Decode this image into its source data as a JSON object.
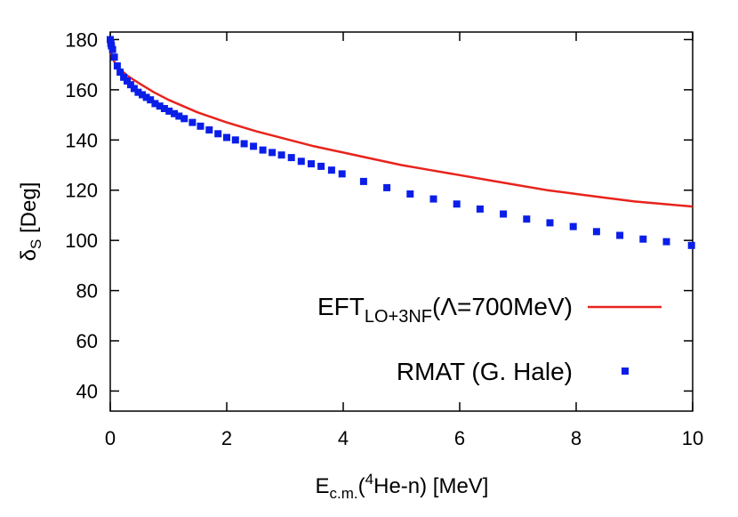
{
  "chart_data": {
    "type": "line",
    "xlabel": "E_c.m.(4He-n) [MeV]",
    "ylabel": "δ_S [Deg]",
    "xlim": [
      0,
      10
    ],
    "ylim": [
      32,
      183
    ],
    "x_ticks": [
      "0",
      "2",
      "4",
      "6",
      "8",
      "10"
    ],
    "y_ticks": [
      "40",
      "60",
      "80",
      "100",
      "120",
      "140",
      "160",
      "180"
    ],
    "grid": false,
    "legend_position": "bottom-right",
    "legend_entries": [
      "EFT_LO+3NF(Λ=700MeV)",
      "RMAT (G. Hale)"
    ],
    "series": [
      {
        "name": "EFT_LO+3NF(Λ=700MeV)",
        "style": "line",
        "color": "#e8231c",
        "x": [
          0.0,
          0.01,
          0.05,
          0.1,
          0.2,
          0.3,
          0.5,
          0.75,
          1.0,
          1.5,
          2.0,
          2.5,
          3.0,
          3.5,
          4.0,
          4.5,
          5.0,
          5.5,
          6.0,
          6.5,
          7.0,
          7.5,
          8.0,
          8.5,
          9.0,
          9.5,
          10.0
        ],
        "y": [
          180.0,
          175.0,
          172.0,
          170.0,
          167.5,
          165.5,
          162.5,
          159.0,
          156.0,
          151.0,
          147.0,
          143.5,
          140.5,
          137.5,
          135.0,
          132.5,
          130.0,
          128.0,
          126.0,
          124.0,
          122.0,
          120.0,
          118.5,
          117.0,
          115.5,
          114.5,
          113.5
        ]
      },
      {
        "name": "RMAT (G. Hale)",
        "style": "markers",
        "color": "#0a1ee8",
        "x": [
          0.0,
          0.01,
          0.02,
          0.04,
          0.07,
          0.12,
          0.17,
          0.23,
          0.29,
          0.35,
          0.41,
          0.48,
          0.55,
          0.62,
          0.69,
          0.77,
          0.85,
          0.93,
          1.01,
          1.1,
          1.18,
          1.27,
          1.41,
          1.55,
          1.7,
          1.85,
          2.0,
          2.15,
          2.3,
          2.46,
          2.62,
          2.78,
          2.94,
          3.11,
          3.28,
          3.45,
          3.62,
          3.8,
          3.98,
          4.35,
          4.75,
          5.15,
          5.55,
          5.95,
          6.35,
          6.75,
          7.15,
          7.55,
          7.95,
          8.35,
          8.75,
          9.15,
          9.55,
          9.98
        ],
        "y": [
          180.0,
          178.5,
          177.5,
          176.0,
          173.0,
          169.5,
          167.0,
          165.0,
          163.5,
          162.0,
          160.5,
          159.0,
          158.0,
          157.0,
          156.0,
          154.5,
          153.5,
          152.5,
          151.5,
          150.5,
          149.5,
          148.5,
          147.0,
          145.5,
          144.0,
          142.5,
          141.0,
          140.0,
          138.5,
          137.5,
          136.0,
          135.0,
          134.0,
          133.0,
          131.5,
          130.5,
          129.5,
          128.0,
          126.5,
          123.5,
          121.0,
          118.5,
          116.5,
          114.5,
          112.5,
          110.5,
          108.5,
          107.0,
          105.5,
          103.5,
          102.0,
          100.5,
          99.5,
          98.0
        ]
      }
    ]
  }
}
